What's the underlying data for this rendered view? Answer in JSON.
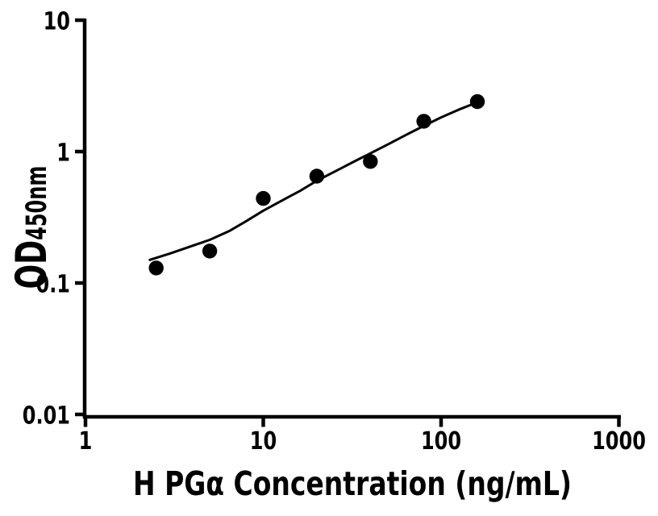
{
  "figure": {
    "background_color": "#ffffff",
    "foreground_color": "#000000"
  },
  "chart_data": {
    "type": "scatter",
    "title": "",
    "xlabel": "H PGα Concentration (ng/mL)",
    "ylabel_main": "OD",
    "ylabel_sub": "450nm",
    "x_scale": "log",
    "y_scale": "log",
    "xlim": [
      1,
      1000
    ],
    "ylim": [
      0.01,
      10
    ],
    "x_ticks": [
      1,
      10,
      100,
      1000
    ],
    "x_tick_labels": [
      "1",
      "10",
      "100",
      "1000"
    ],
    "y_ticks": [
      10,
      1,
      0.1,
      0.01
    ],
    "y_tick_labels": [
      "10",
      "1",
      "0.1",
      "0.01"
    ],
    "grid": "off",
    "legend": "none",
    "series": [
      {
        "name": "standard-points",
        "kind": "scatter",
        "marker": "filled-circle",
        "color": "#000000",
        "points": [
          [
            2.5,
            0.13
          ],
          [
            5,
            0.175
          ],
          [
            10,
            0.44
          ],
          [
            20,
            0.65
          ],
          [
            40,
            0.84
          ],
          [
            80,
            1.7
          ],
          [
            160,
            2.4
          ]
        ]
      },
      {
        "name": "fit-curve",
        "kind": "line",
        "color": "#000000",
        "points": [
          [
            2.3,
            0.15
          ],
          [
            3,
            0.168
          ],
          [
            4,
            0.192
          ],
          [
            5,
            0.213
          ],
          [
            6.5,
            0.25
          ],
          [
            8,
            0.295
          ],
          [
            10,
            0.355
          ],
          [
            13,
            0.43
          ],
          [
            16,
            0.5
          ],
          [
            20,
            0.6
          ],
          [
            26,
            0.72
          ],
          [
            33,
            0.85
          ],
          [
            40,
            0.97
          ],
          [
            50,
            1.13
          ],
          [
            65,
            1.36
          ],
          [
            80,
            1.57
          ],
          [
            100,
            1.82
          ],
          [
            125,
            2.08
          ],
          [
            160,
            2.37
          ]
        ]
      }
    ]
  }
}
